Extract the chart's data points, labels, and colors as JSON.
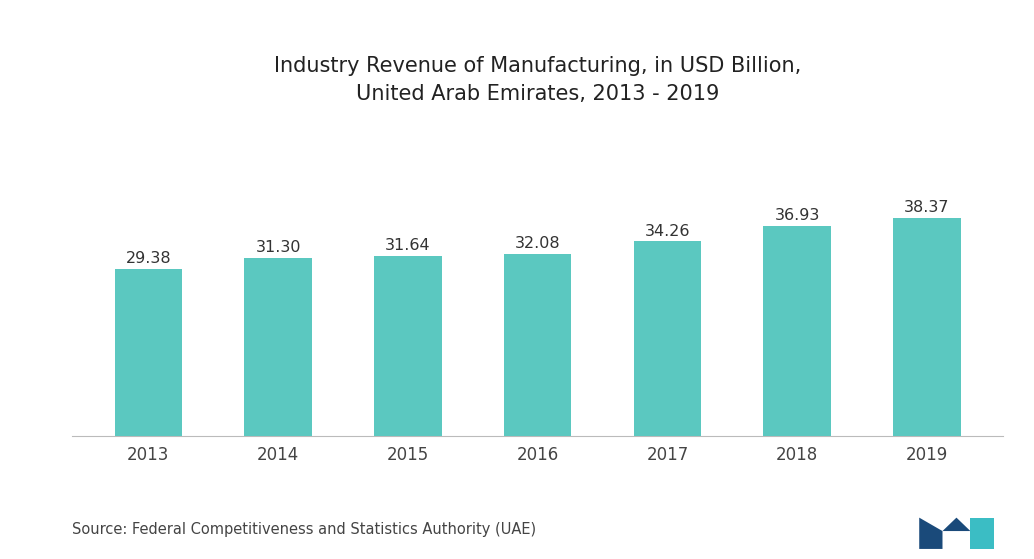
{
  "title": "Industry Revenue of Manufacturing, in USD Billion,\nUnited Arab Emirates, 2013 - 2019",
  "categories": [
    "2013",
    "2014",
    "2015",
    "2016",
    "2017",
    "2018",
    "2019"
  ],
  "values": [
    29.38,
    31.3,
    31.64,
    32.08,
    34.26,
    36.93,
    38.37
  ],
  "bar_color": "#5BC8C0",
  "background_color": "#ffffff",
  "title_fontsize": 15,
  "label_fontsize": 11.5,
  "tick_fontsize": 12,
  "source_text": "Source: Federal Competitiveness and Statistics Authority (UAE)",
  "source_fontsize": 10.5,
  "ylim": [
    0,
    62
  ],
  "bar_width": 0.52
}
